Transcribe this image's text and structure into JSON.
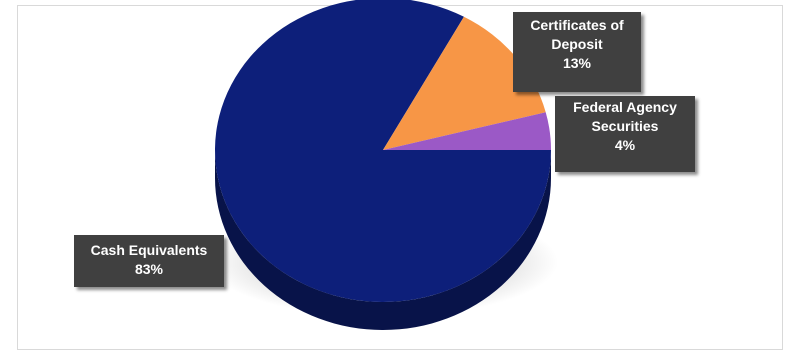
{
  "chart_data": {
    "type": "pie",
    "title": "",
    "slices": [
      {
        "label": "Cash Equivalents",
        "value": 83,
        "percent_label": "83%",
        "color": "#0d1f7a"
      },
      {
        "label": "Certificates of Deposit",
        "value": 13,
        "percent_label": "13%",
        "color": "#f79646"
      },
      {
        "label": "Federal Agency Securities",
        "value": 4,
        "percent_label": "4%",
        "color": "#9b59c6"
      }
    ],
    "style": "3d"
  }
}
